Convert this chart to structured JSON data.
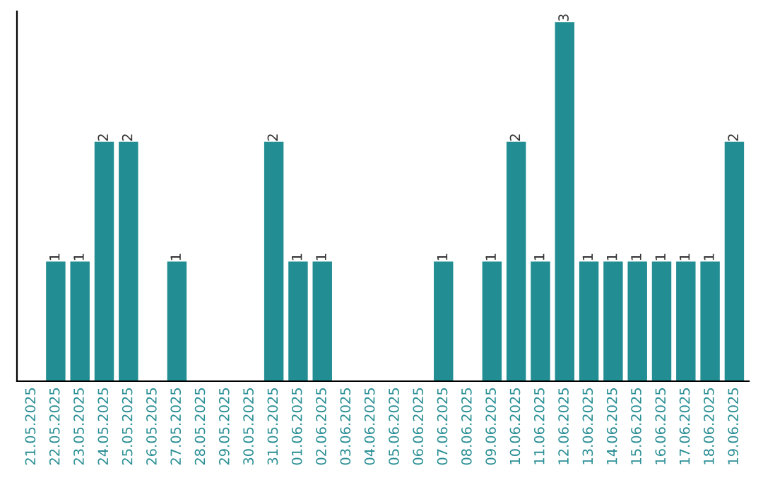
{
  "chart_data": {
    "type": "bar",
    "categories": [
      "21.05.2025",
      "22.05.2025",
      "23.05.2025",
      "24.05.2025",
      "25.05.2025",
      "26.05.2025",
      "27.05.2025",
      "28.05.2025",
      "29.05.2025",
      "30.05.2025",
      "31.05.2025",
      "01.06.2025",
      "02.06.2025",
      "03.06.2025",
      "04.06.2025",
      "05.06.2025",
      "06.06.2025",
      "07.06.2025",
      "08.06.2025",
      "09.06.2025",
      "10.06.2025",
      "11.06.2025",
      "12.06.2025",
      "13.06.2025",
      "14.06.2025",
      "15.06.2025",
      "16.06.2025",
      "17.06.2025",
      "18.06.2025",
      "19.06.2025"
    ],
    "values": [
      0,
      1,
      1,
      2,
      2,
      0,
      1,
      0,
      0,
      0,
      2,
      1,
      1,
      0,
      0,
      0,
      0,
      1,
      0,
      1,
      2,
      1,
      3,
      1,
      1,
      1,
      1,
      1,
      1,
      2
    ],
    "value_labels": [
      null,
      "1",
      "1",
      "2",
      "2",
      null,
      "1",
      null,
      null,
      null,
      "2",
      "1",
      "1",
      null,
      null,
      null,
      null,
      "1",
      null,
      "1",
      "2",
      "1",
      "3",
      "1",
      "1",
      "1",
      "1",
      "1",
      "1",
      "2"
    ],
    "color": "#228e93",
    "tick_labels": "x",
    "grid": false,
    "legend": false
  }
}
